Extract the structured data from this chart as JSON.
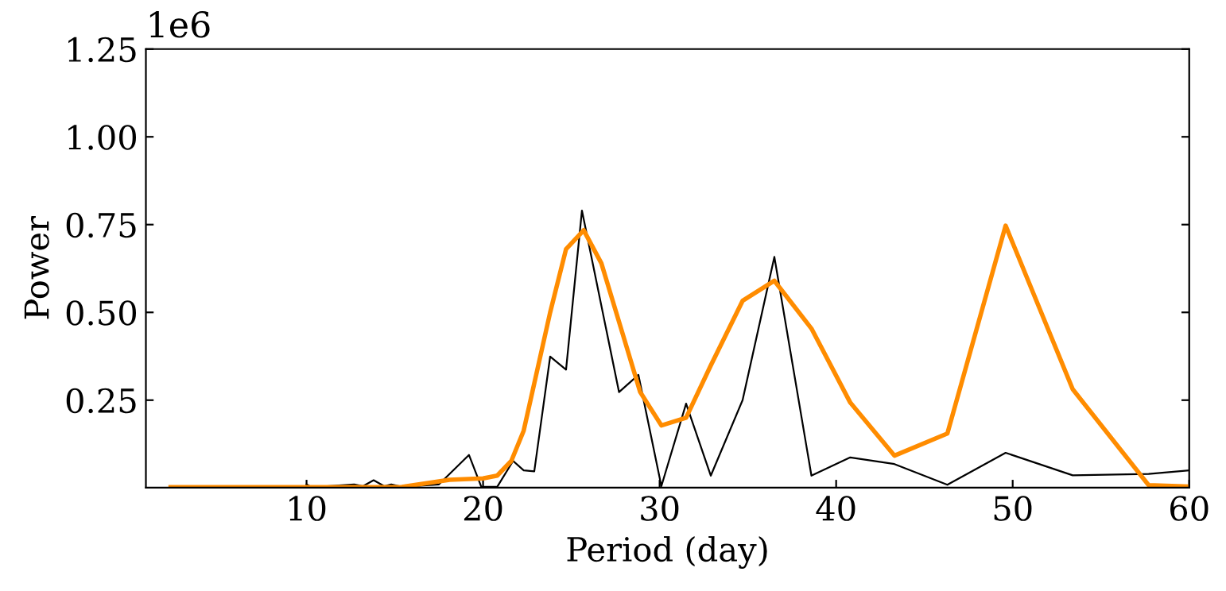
{
  "chart_data": {
    "type": "line",
    "xlabel": "Period (day)",
    "ylabel": "Power",
    "annotations": [
      "1e6"
    ],
    "xlim": [
      0.9,
      60
    ],
    "xticks": [
      10,
      20,
      30,
      40,
      50,
      60
    ],
    "ylim": [
      0.001,
      1.25
    ],
    "yticks": [
      0.25,
      {
        "value": 0.5,
        "label": "0.50"
      },
      0.75,
      {
        "value": 1.0,
        "label": "1.00"
      },
      1.25
    ],
    "grid": false,
    "legend": false,
    "marker": "none",
    "line_style": "solid",
    "series": [
      {
        "color": "#000000",
        "x": [
          10.0,
          10.3,
          12.7,
          13.2,
          13.8,
          14.4,
          14.8,
          15.4,
          17.5,
          19.2,
          19.9,
          20.4,
          20.8,
          21.7,
          22.3,
          22.9,
          23.8,
          24.7,
          25.6,
          27.7,
          28.8,
          30.1,
          31.5,
          32.9,
          34.7,
          36.5,
          38.6,
          40.8,
          43.3,
          46.3,
          49.6,
          53.4,
          57.7,
          60
        ],
        "values": [
          0.01,
          0.002,
          0.01,
          0.005,
          0.022,
          0.005,
          0.01,
          0.003,
          0.01,
          0.094,
          0.003,
          0.003,
          0.003,
          0.077,
          0.05,
          0.047,
          0.374,
          0.337,
          0.79,
          0.273,
          0.322,
          0.005,
          0.24,
          0.035,
          0.25,
          0.658,
          0.035,
          0.087,
          0.068,
          0.009,
          0.1,
          0.036,
          0.04,
          0.05
        ]
      },
      {
        "color": "#ff8c00",
        "x": [
          2.3,
          6,
          10,
          14,
          15.4,
          18.1,
          20.0,
          20.8,
          21.6,
          22.3,
          23.8,
          24.7,
          25.7,
          26.7,
          27.9,
          28.9,
          30.1,
          31.5,
          32.9,
          34.7,
          36.5,
          38.6,
          40.8,
          43.3,
          46.3,
          49.6,
          53.4,
          57.7,
          60
        ],
        "values": [
          0.002,
          0.002,
          0.002,
          0.002,
          0.003,
          0.023,
          0.027,
          0.035,
          0.077,
          0.163,
          0.5,
          0.68,
          0.734,
          0.64,
          0.44,
          0.273,
          0.178,
          0.2,
          0.349,
          0.533,
          0.59,
          0.454,
          0.243,
          0.092,
          0.155,
          0.747,
          0.281,
          0.008,
          0.004
        ]
      }
    ]
  }
}
